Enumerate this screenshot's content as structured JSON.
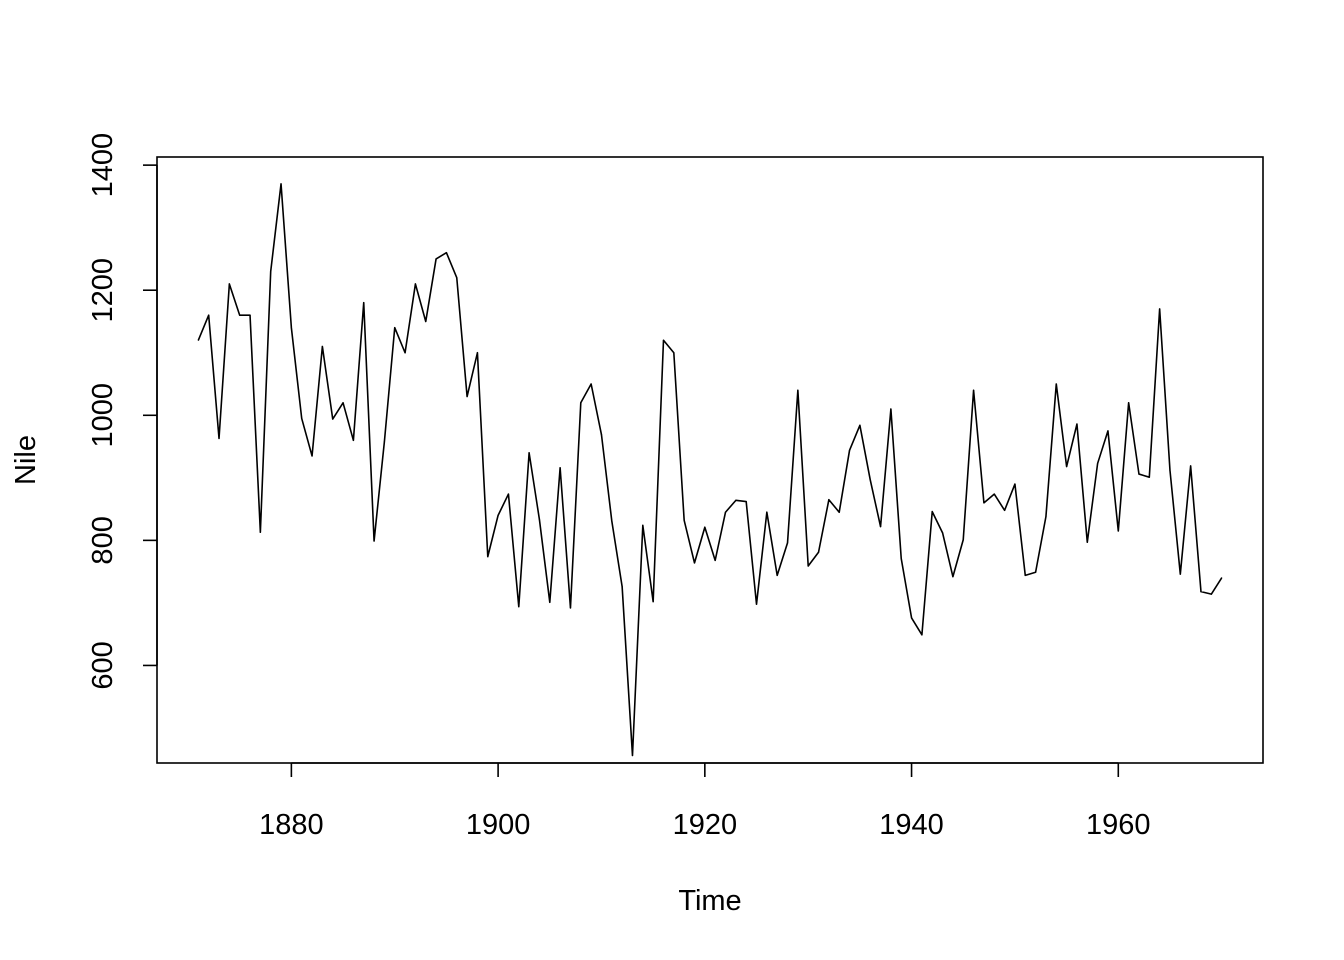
{
  "chart_data": {
    "type": "line",
    "title": "",
    "xlabel": "Time",
    "ylabel": "Nile",
    "xlim": [
      1867,
      1974
    ],
    "ylim": [
      444,
      1413
    ],
    "x_ticks": [
      1880,
      1900,
      1920,
      1940,
      1960
    ],
    "y_ticks": [
      600,
      800,
      1000,
      1200,
      1400
    ],
    "grid": false,
    "legend": "none",
    "line_color": "#000000",
    "x_start": 1871,
    "x_step": 1,
    "series": [
      {
        "name": "",
        "values": [
          1120,
          1160,
          963,
          1210,
          1160,
          1160,
          813,
          1230,
          1370,
          1140,
          995,
          935,
          1110,
          994,
          1020,
          960,
          1180,
          799,
          958,
          1140,
          1100,
          1210,
          1150,
          1250,
          1260,
          1220,
          1030,
          1100,
          774,
          840,
          874,
          694,
          940,
          833,
          701,
          916,
          692,
          1020,
          1050,
          969,
          831,
          726,
          456,
          824,
          702,
          1120,
          1100,
          832,
          764,
          821,
          768,
          845,
          864,
          862,
          698,
          845,
          744,
          796,
          1040,
          759,
          781,
          865,
          845,
          944,
          984,
          897,
          822,
          1010,
          771,
          676,
          649,
          846,
          812,
          742,
          801,
          1040,
          860,
          874,
          848,
          890,
          744,
          749,
          838,
          1050,
          918,
          986,
          797,
          923,
          975,
          815,
          1020,
          906,
          901,
          1170,
          912,
          746,
          919,
          718,
          714,
          740
        ]
      }
    ]
  }
}
